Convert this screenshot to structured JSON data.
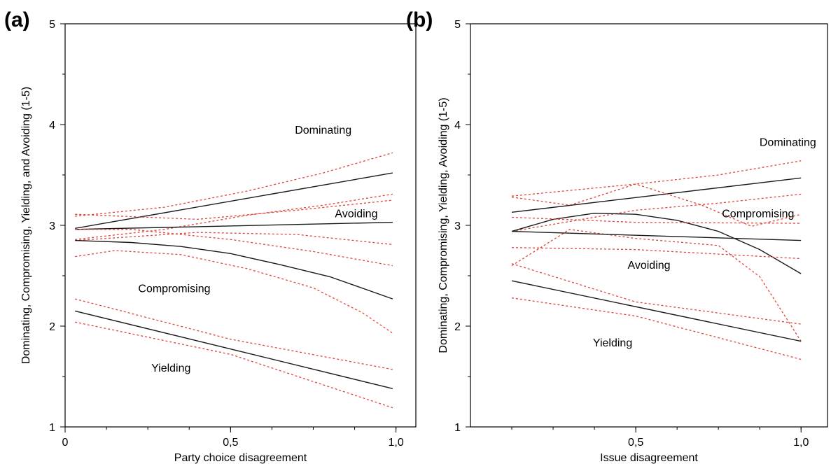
{
  "chart_data": [
    {
      "panel": "(a)",
      "type": "line",
      "xlabel": "Party choice disagreement",
      "ylabel": "Dominating, Compromising, Yielding, and Avoiding (1-5)",
      "xlim": [
        0,
        1.06
      ],
      "ylim": [
        1,
        5
      ],
      "xticks": [
        {
          "v": 0,
          "label": "0"
        },
        {
          "v": 0.5,
          "label": "0,5"
        },
        {
          "v": 1.0,
          "label": "1,0"
        }
      ],
      "yticks": [
        {
          "v": 1,
          "label": "1"
        },
        {
          "v": 2,
          "label": "2"
        },
        {
          "v": 3,
          "label": "3"
        },
        {
          "v": 4,
          "label": "4"
        },
        {
          "v": 5,
          "label": "5"
        }
      ],
      "series_color": "#1a1a1a",
      "ci_color": "#e0443a",
      "series": [
        {
          "name": "Dominating",
          "label_at": [
            0.78,
            3.95
          ],
          "points": [
            [
              0.03,
              2.97
            ],
            [
              0.99,
              3.52
            ]
          ],
          "ci_upper": [
            [
              0.03,
              3.09
            ],
            [
              0.3,
              3.18
            ],
            [
              0.55,
              3.34
            ],
            [
              0.78,
              3.52
            ],
            [
              0.99,
              3.72
            ]
          ],
          "ci_lower": [
            [
              0.03,
              2.86
            ],
            [
              0.3,
              2.96
            ],
            [
              0.55,
              3.1
            ],
            [
              0.78,
              3.2
            ],
            [
              0.99,
              3.31
            ]
          ]
        },
        {
          "name": "Avoiding",
          "label_at": [
            0.88,
            3.12
          ],
          "points": [
            [
              0.03,
              2.96
            ],
            [
              0.99,
              3.03
            ]
          ],
          "ci_upper": [
            [
              0.03,
              3.11
            ],
            [
              0.4,
              3.06
            ],
            [
              0.7,
              3.15
            ],
            [
              0.99,
              3.25
            ]
          ],
          "ci_lower": [
            [
              0.03,
              2.85
            ],
            [
              0.4,
              2.93
            ],
            [
              0.7,
              2.91
            ],
            [
              0.99,
              2.81
            ]
          ]
        },
        {
          "name": "Compromising",
          "label_at": [
            0.33,
            2.38
          ],
          "points": [
            [
              0.03,
              2.85
            ],
            [
              0.2,
              2.83
            ],
            [
              0.35,
              2.79
            ],
            [
              0.5,
              2.72
            ],
            [
              0.65,
              2.61
            ],
            [
              0.8,
              2.49
            ],
            [
              0.99,
              2.27
            ]
          ],
          "ci_upper": [
            [
              0.03,
              2.96
            ],
            [
              0.2,
              2.96
            ],
            [
              0.5,
              2.86
            ],
            [
              0.75,
              2.74
            ],
            [
              0.99,
              2.6
            ]
          ],
          "ci_lower": [
            [
              0.03,
              2.69
            ],
            [
              0.15,
              2.75
            ],
            [
              0.35,
              2.71
            ],
            [
              0.55,
              2.57
            ],
            [
              0.75,
              2.38
            ],
            [
              0.9,
              2.13
            ],
            [
              0.99,
              1.93
            ]
          ]
        },
        {
          "name": "Yielding",
          "label_at": [
            0.32,
            1.59
          ],
          "points": [
            [
              0.03,
              2.15
            ],
            [
              0.99,
              1.38
            ]
          ],
          "ci_upper": [
            [
              0.03,
              2.27
            ],
            [
              0.5,
              1.87
            ],
            [
              0.99,
              1.57
            ]
          ],
          "ci_lower": [
            [
              0.03,
              2.04
            ],
            [
              0.5,
              1.72
            ],
            [
              0.99,
              1.19
            ]
          ]
        }
      ]
    },
    {
      "panel": "(b)",
      "type": "line",
      "xlabel": "Issue disagreement",
      "ylabel": "Dominating, Compromising, Yielding, Avoiding (1-5)",
      "xlim": [
        0,
        1.08
      ],
      "ylim": [
        1,
        5
      ],
      "xticks": [
        {
          "v": 0.5,
          "label": "0,5"
        },
        {
          "v": 1.0,
          "label": "1,0"
        }
      ],
      "yticks": [
        {
          "v": 1,
          "label": "1"
        },
        {
          "v": 2,
          "label": "2"
        },
        {
          "v": 3,
          "label": "3"
        },
        {
          "v": 4,
          "label": "4"
        },
        {
          "v": 5,
          "label": "5"
        }
      ],
      "series_color": "#1a1a1a",
      "ci_color": "#e0443a",
      "series": [
        {
          "name": "Dominating",
          "label_at": [
            0.96,
            3.83
          ],
          "points": [
            [
              0.125,
              3.13
            ],
            [
              1.0,
              3.47
            ]
          ],
          "ci_upper": [
            [
              0.125,
              3.29
            ],
            [
              0.5,
              3.41
            ],
            [
              0.75,
              3.5
            ],
            [
              1.0,
              3.64
            ]
          ],
          "ci_lower": [
            [
              0.125,
              2.94
            ],
            [
              0.5,
              3.15
            ],
            [
              0.75,
              3.22
            ],
            [
              1.0,
              3.31
            ]
          ]
        },
        {
          "name": "Compromising",
          "label_at": [
            0.87,
            3.12
          ],
          "points": [
            [
              0.125,
              2.94
            ],
            [
              0.25,
              3.06
            ],
            [
              0.375,
              3.12
            ],
            [
              0.5,
              3.11
            ],
            [
              0.625,
              3.05
            ],
            [
              0.75,
              2.94
            ],
            [
              0.875,
              2.76
            ],
            [
              1.0,
              2.52
            ]
          ],
          "ci_upper": [
            [
              0.125,
              3.28
            ],
            [
              0.3,
              3.2
            ],
            [
              0.5,
              3.41
            ],
            [
              0.7,
              3.2
            ],
            [
              0.85,
              2.99
            ],
            [
              1.0,
              3.11
            ]
          ],
          "ci_lower": [
            [
              0.125,
              2.6
            ],
            [
              0.3,
              2.96
            ],
            [
              0.5,
              2.87
            ],
            [
              0.75,
              2.8
            ],
            [
              0.875,
              2.49
            ],
            [
              1.0,
              1.85
            ]
          ]
        },
        {
          "name": "Avoiding",
          "label_at": [
            0.54,
            2.61
          ],
          "points": [
            [
              0.125,
              2.94
            ],
            [
              1.0,
              2.85
            ]
          ],
          "ci_upper": [
            [
              0.125,
              3.08
            ],
            [
              0.5,
              3.03
            ],
            [
              1.0,
              3.02
            ]
          ],
          "ci_lower": [
            [
              0.125,
              2.78
            ],
            [
              0.5,
              2.76
            ],
            [
              1.0,
              2.67
            ]
          ]
        },
        {
          "name": "Yielding",
          "label_at": [
            0.43,
            1.84
          ],
          "points": [
            [
              0.125,
              2.45
            ],
            [
              1.0,
              1.85
            ]
          ],
          "ci_upper": [
            [
              0.125,
              2.62
            ],
            [
              0.5,
              2.24
            ],
            [
              1.0,
              2.02
            ]
          ],
          "ci_lower": [
            [
              0.125,
              2.28
            ],
            [
              0.5,
              2.1
            ],
            [
              1.0,
              1.67
            ]
          ]
        }
      ]
    }
  ]
}
